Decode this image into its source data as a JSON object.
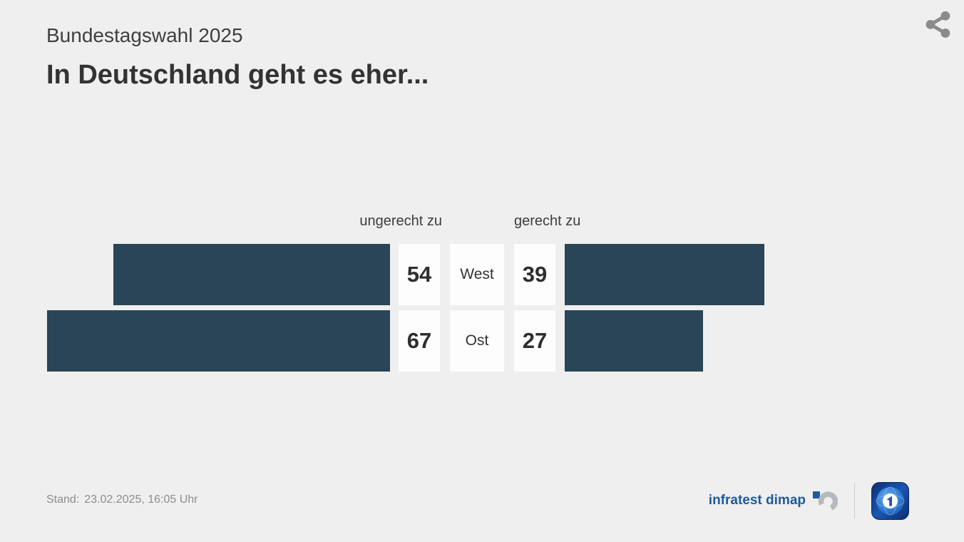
{
  "header": {
    "kicker": "Bundestagswahl 2025",
    "title": "In Deutschland geht es eher..."
  },
  "chart_data": {
    "type": "bar",
    "variant": "diverging-horizontal",
    "title": "In Deutschland geht es eher...",
    "categories": [
      "West",
      "Ost"
    ],
    "series": [
      {
        "name": "ungerecht zu",
        "side": "left",
        "values": [
          54,
          67
        ]
      },
      {
        "name": "gerecht zu",
        "side": "right",
        "values": [
          39,
          27
        ]
      }
    ],
    "axis": {
      "min": 0,
      "max": 67
    },
    "grid": false,
    "legend_position": "top-center",
    "bar_color": "#2a4557"
  },
  "footer": {
    "stand_label": "Stand:",
    "stand_value": "23.02.2025, 16:05 Uhr",
    "source": "infratest dimap"
  },
  "icons": {
    "share": "share-icon",
    "infratest_mark": "infratest-dimap-logo-icon",
    "ard": "ard-logo"
  },
  "colors": {
    "background": "#efefef",
    "bar": "#2a4557",
    "box_background": "#fdfdfd",
    "text_dark": "#333333",
    "text_muted": "#8d8d8d",
    "brand_blue": "#1d5b9d",
    "icon_gray": "#8b8b8b"
  }
}
